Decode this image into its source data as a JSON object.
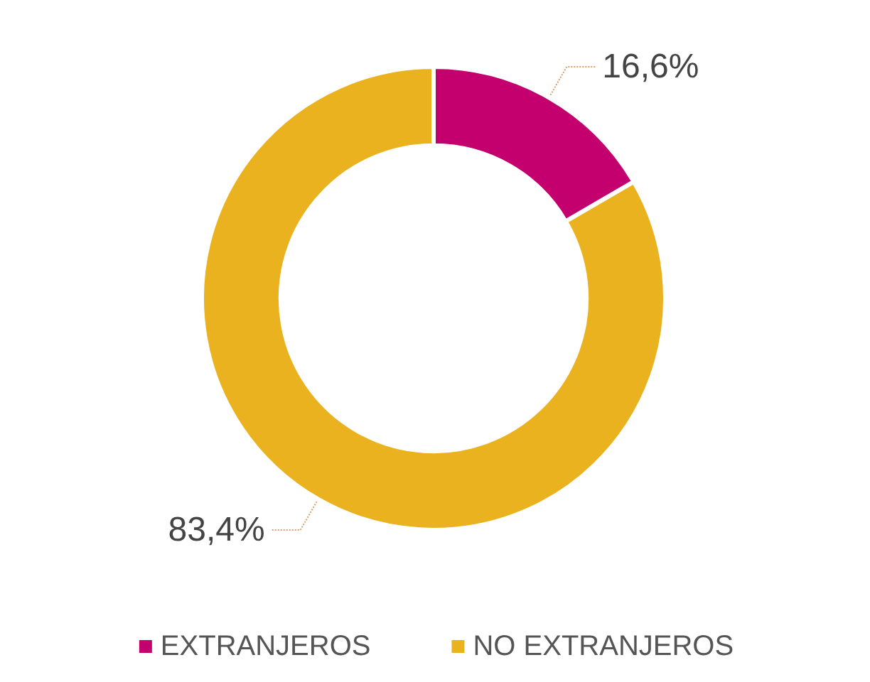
{
  "chart_data": {
    "type": "donut",
    "categories": [
      "EXTRANJEROS",
      "NO EXTRANJEROS"
    ],
    "values": [
      16.6,
      83.4
    ],
    "colors": [
      "#c4006e",
      "#eab21e"
    ],
    "value_labels": [
      "16,6%",
      "83,4%"
    ],
    "legend": "bottom"
  }
}
